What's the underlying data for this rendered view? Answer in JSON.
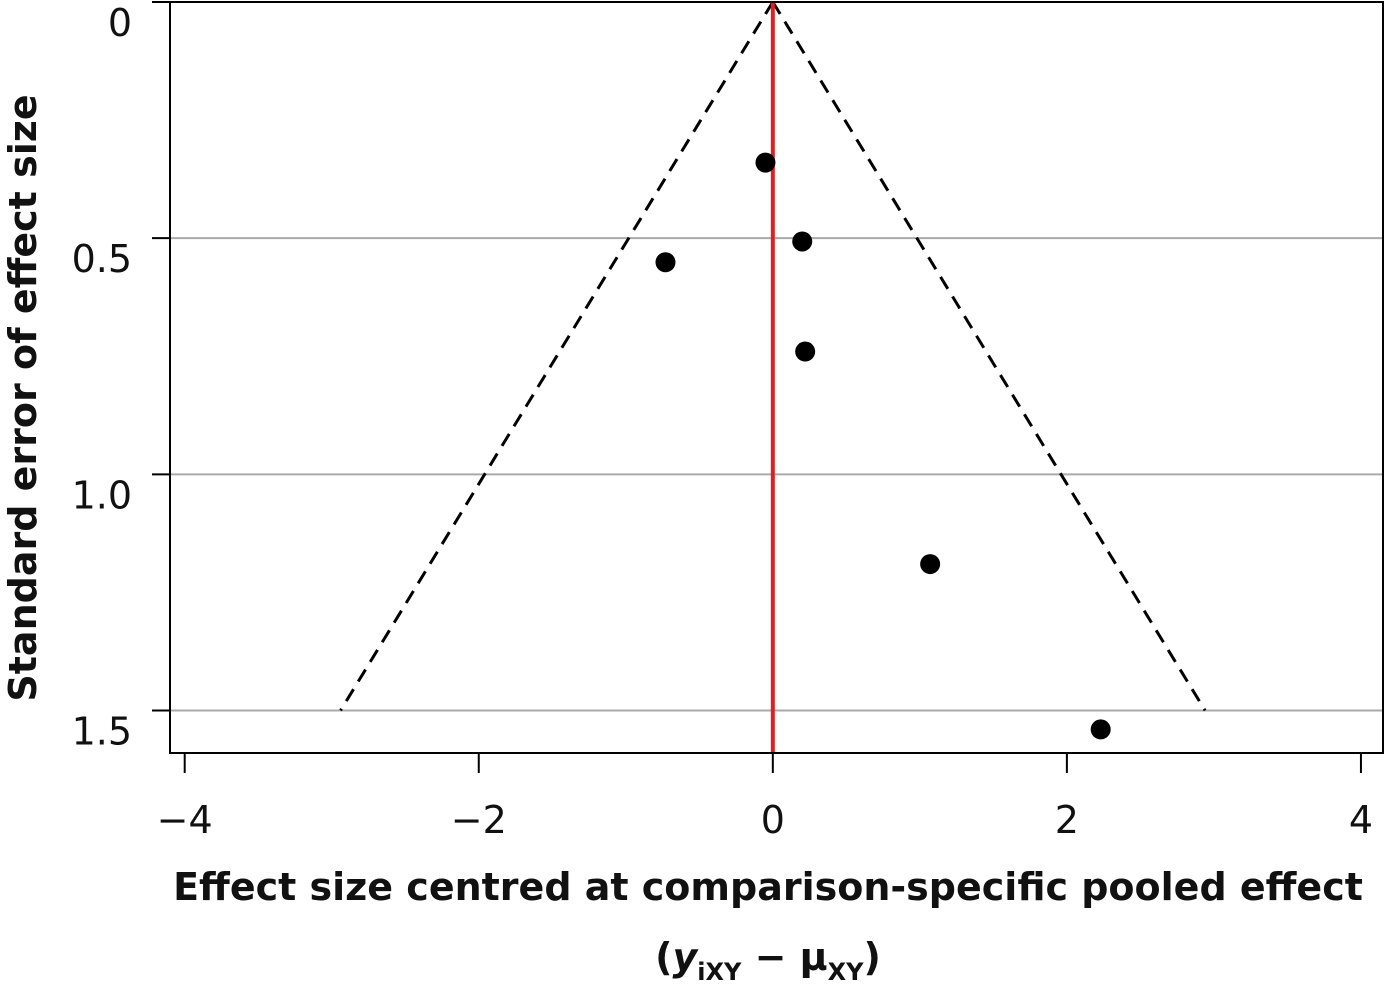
{
  "chart_data": {
    "type": "scatter",
    "title": "",
    "xlabel": "Effect size centred at comparison-specific pooled effect",
    "xlabel_formula": {
      "open": "(",
      "y": "y",
      "y_sub": "iXY",
      "minus": " − ",
      "mu": "μ",
      "mu_sub": "XY",
      "close": ")"
    },
    "ylabel": "Standard error of effect size",
    "xlim": [
      -4.1,
      4.15
    ],
    "ylim": [
      0,
      1.59
    ],
    "y_inverted": true,
    "x_ticks": [
      {
        "value": -4,
        "label": "−4"
      },
      {
        "value": -2,
        "label": "−2"
      },
      {
        "value": 0,
        "label": "0"
      },
      {
        "value": 2,
        "label": "2"
      },
      {
        "value": 4,
        "label": "4"
      }
    ],
    "y_ticks": [
      {
        "value": 0,
        "label": "0"
      },
      {
        "value": 0.5,
        "label": "0.5"
      },
      {
        "value": 1.0,
        "label": "1.0"
      },
      {
        "value": 1.5,
        "label": "1.5"
      }
    ],
    "grid": "horizontal",
    "reference_line": {
      "x": 0,
      "color": "#e02020"
    },
    "funnel": {
      "apex": [
        0,
        0
      ],
      "left_base": [
        -2.94,
        1.5
      ],
      "right_base": [
        2.94,
        1.5
      ],
      "style": "dashed"
    },
    "points": [
      {
        "x": -0.05,
        "y": 0.34
      },
      {
        "x": 0.2,
        "y": 0.507
      },
      {
        "x": -0.73,
        "y": 0.551
      },
      {
        "x": 0.22,
        "y": 0.74
      },
      {
        "x": 1.07,
        "y": 1.19
      },
      {
        "x": 2.23,
        "y": 1.54
      }
    ],
    "colors": {
      "points": "#000000",
      "grid": "#aaaaaa",
      "reference": "#e02020",
      "funnel": "#000000"
    }
  }
}
